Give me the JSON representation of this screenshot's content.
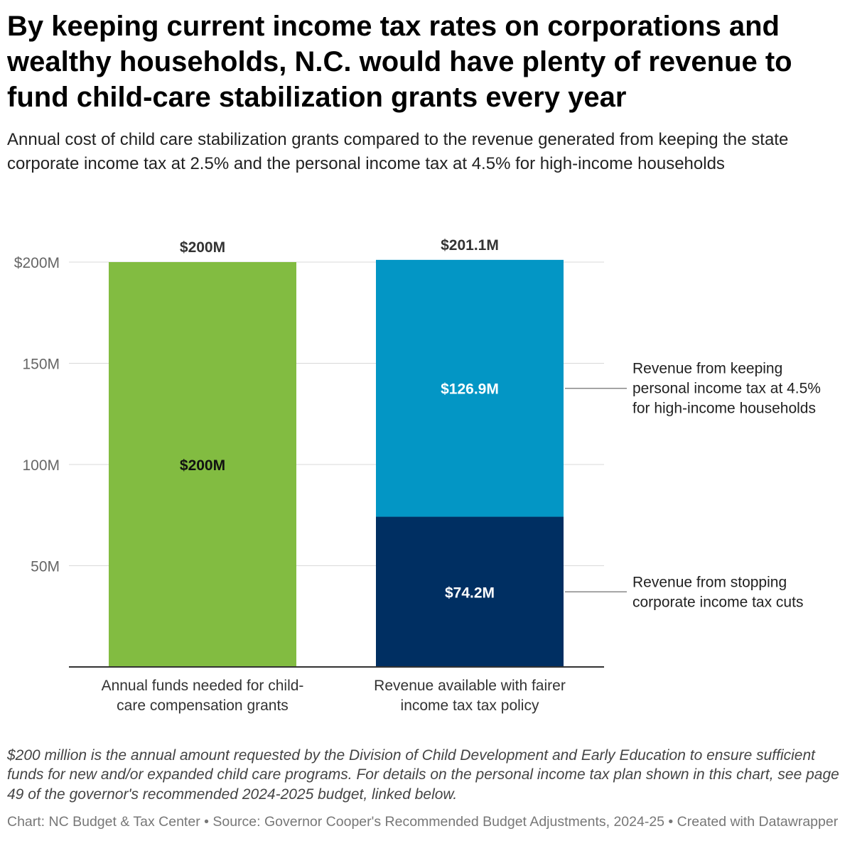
{
  "title": "By keeping current income tax rates on corporations and wealthy households, N.C. would have plenty of revenue to fund child-care stabilization grants every year",
  "subtitle": "Annual cost of child care stabilization grants compared to the revenue generated from keeping the state corporate income tax at 2.5% and the personal income tax at 4.5% for high-income households",
  "chart_data": {
    "type": "bar",
    "stacked": true,
    "categories": [
      [
        "Annual funds needed for child-",
        "care compensation grants"
      ],
      [
        "Revenue available with fairer",
        "income tax tax policy"
      ]
    ],
    "bars": [
      {
        "total": 200,
        "total_label": "$200M",
        "segments": [
          {
            "name": "Annual funds needed",
            "value": 200,
            "label": "$200M",
            "color": "#82bc41",
            "label_color": "#111111"
          }
        ]
      },
      {
        "total": 201.1,
        "total_label": "$201.1M",
        "segments": [
          {
            "name": "Revenue from stopping corporate income tax cuts",
            "value": 74.2,
            "label": "$74.2M",
            "color": "#002f62",
            "label_color": "#ffffff"
          },
          {
            "name": "Revenue from keeping personal income tax at 4.5% for high-income households",
            "value": 126.9,
            "label": "$126.9M",
            "color": "#0396c5",
            "label_color": "#ffffff"
          }
        ]
      }
    ],
    "y_ticks": [
      {
        "value": 50,
        "label": "50M"
      },
      {
        "value": 100,
        "label": "100M"
      },
      {
        "value": 150,
        "label": "150M"
      },
      {
        "value": 200,
        "label": "$200M"
      }
    ],
    "ylim": [
      0,
      200
    ],
    "annotations": [
      {
        "segment_of_bar": 1,
        "segment": 1,
        "lines": [
          "Revenue from keeping",
          "personal income tax at 4.5%",
          "for high-income households"
        ]
      },
      {
        "segment_of_bar": 1,
        "segment": 0,
        "lines": [
          "Revenue from stopping",
          "corporate income tax cuts"
        ]
      }
    ]
  },
  "notes": "$200 million is the annual amount requested by the Division of Child Development and Early Education to ensure sufficient funds for new and/or expanded child care programs. For details on the personal income tax plan shown in this chart, see page 49 of the governor's recommended 2024-2025 budget, linked below.",
  "source": "Chart: NC Budget & Tax Center • Source: Governor Cooper's Recommended Budget Adjustments, 2024-25 • Created with Datawrapper"
}
